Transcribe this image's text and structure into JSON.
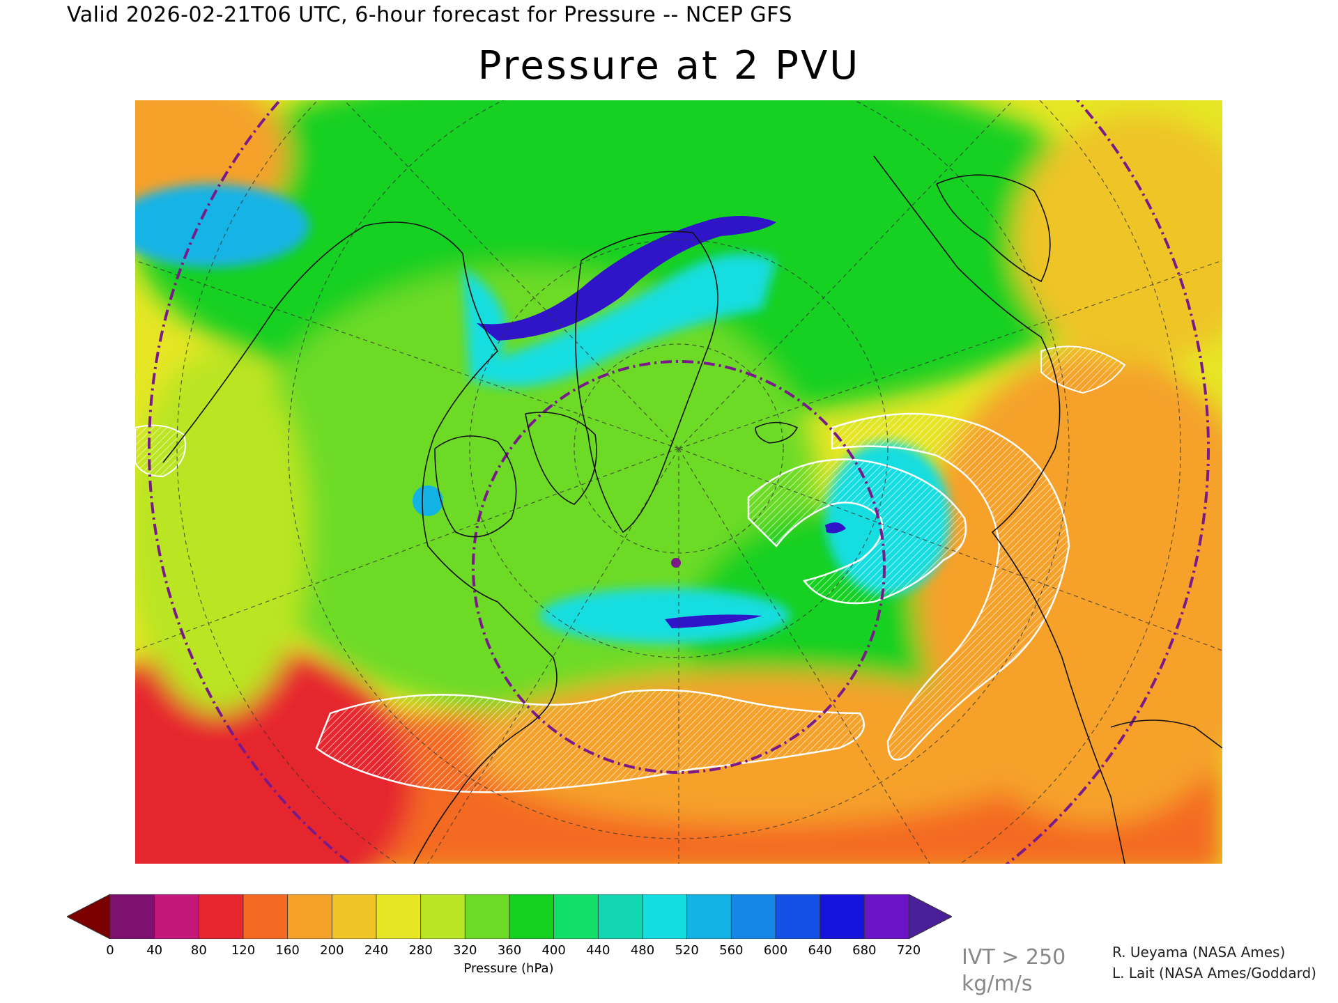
{
  "header": {
    "valid_line": "Valid 2026-02-21T06 UTC, 6-hour forecast for Pressure -- NCEP GFS",
    "title": "Pressure at 2 PVU"
  },
  "map": {
    "projection": "polar-stereographic",
    "region": "North Atlantic / North America / Europe",
    "shading": "pressure at 2 PVU",
    "overlay": "IVT > 250 hatching (white)",
    "marker_color": "#7a1a8a"
  },
  "colorbar": {
    "title": "Pressure (hPa)",
    "ticks": [
      "0",
      "40",
      "80",
      "120",
      "160",
      "200",
      "240",
      "280",
      "320",
      "360",
      "400",
      "440",
      "480",
      "520",
      "560",
      "600",
      "640",
      "680",
      "720"
    ],
    "low_extend_color": "#7a0000",
    "high_extend_color": "#4a1f9a",
    "colors": [
      "#7e1170",
      "#c4177a",
      "#e6252f",
      "#f46a22",
      "#f5a12a",
      "#eec427",
      "#e6e625",
      "#b9e524",
      "#6ddb26",
      "#16d020",
      "#12df6a",
      "#12d7b0",
      "#14dde0",
      "#14b3e6",
      "#1487e6",
      "#1450e6",
      "#1414dc",
      "#6a14c6"
    ]
  },
  "legend": {
    "ivt_line1": "IVT > 250",
    "ivt_line2": "kg/m/s"
  },
  "credits": {
    "line1": "R. Ueyama (NASA Ames)",
    "line2": "L. Lait (NASA Ames/Goddard)"
  }
}
